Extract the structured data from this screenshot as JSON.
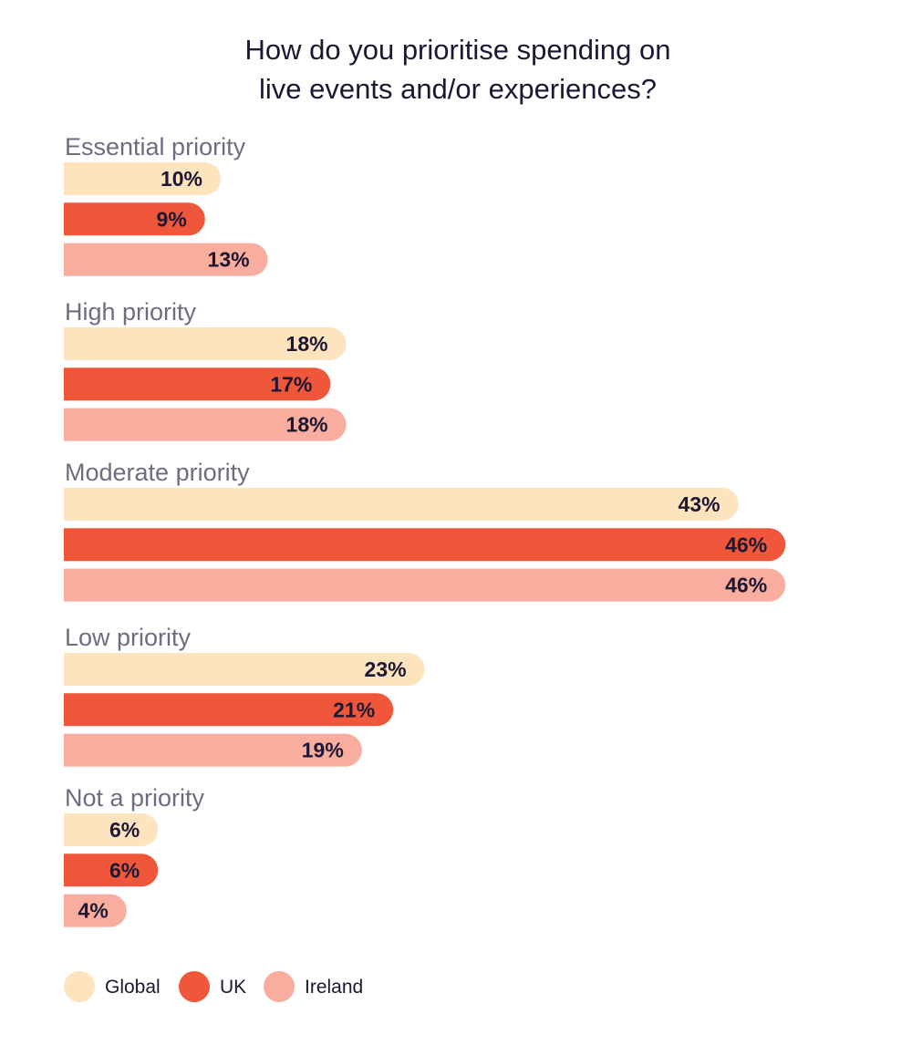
{
  "chart_data": {
    "type": "bar",
    "orientation": "horizontal",
    "title_lines": [
      "How do you prioritise spending on",
      "live events and/or experiences?"
    ],
    "categories": [
      "Essential priority",
      "High priority",
      "Moderate priority",
      "Low priority",
      "Not a priority"
    ],
    "series": [
      {
        "name": "Global",
        "color": "#fee3bf",
        "values": [
          10,
          18,
          43,
          23,
          6
        ]
      },
      {
        "name": "UK",
        "color": "#ef563a",
        "values": [
          9,
          17,
          46,
          21,
          6
        ]
      },
      {
        "name": "Ireland",
        "color": "#f9ad9e",
        "values": [
          13,
          18,
          46,
          19,
          4
        ]
      }
    ],
    "value_suffix": "%",
    "xlim": [
      0,
      46
    ],
    "legend_position": "bottom-left",
    "grid": false
  }
}
